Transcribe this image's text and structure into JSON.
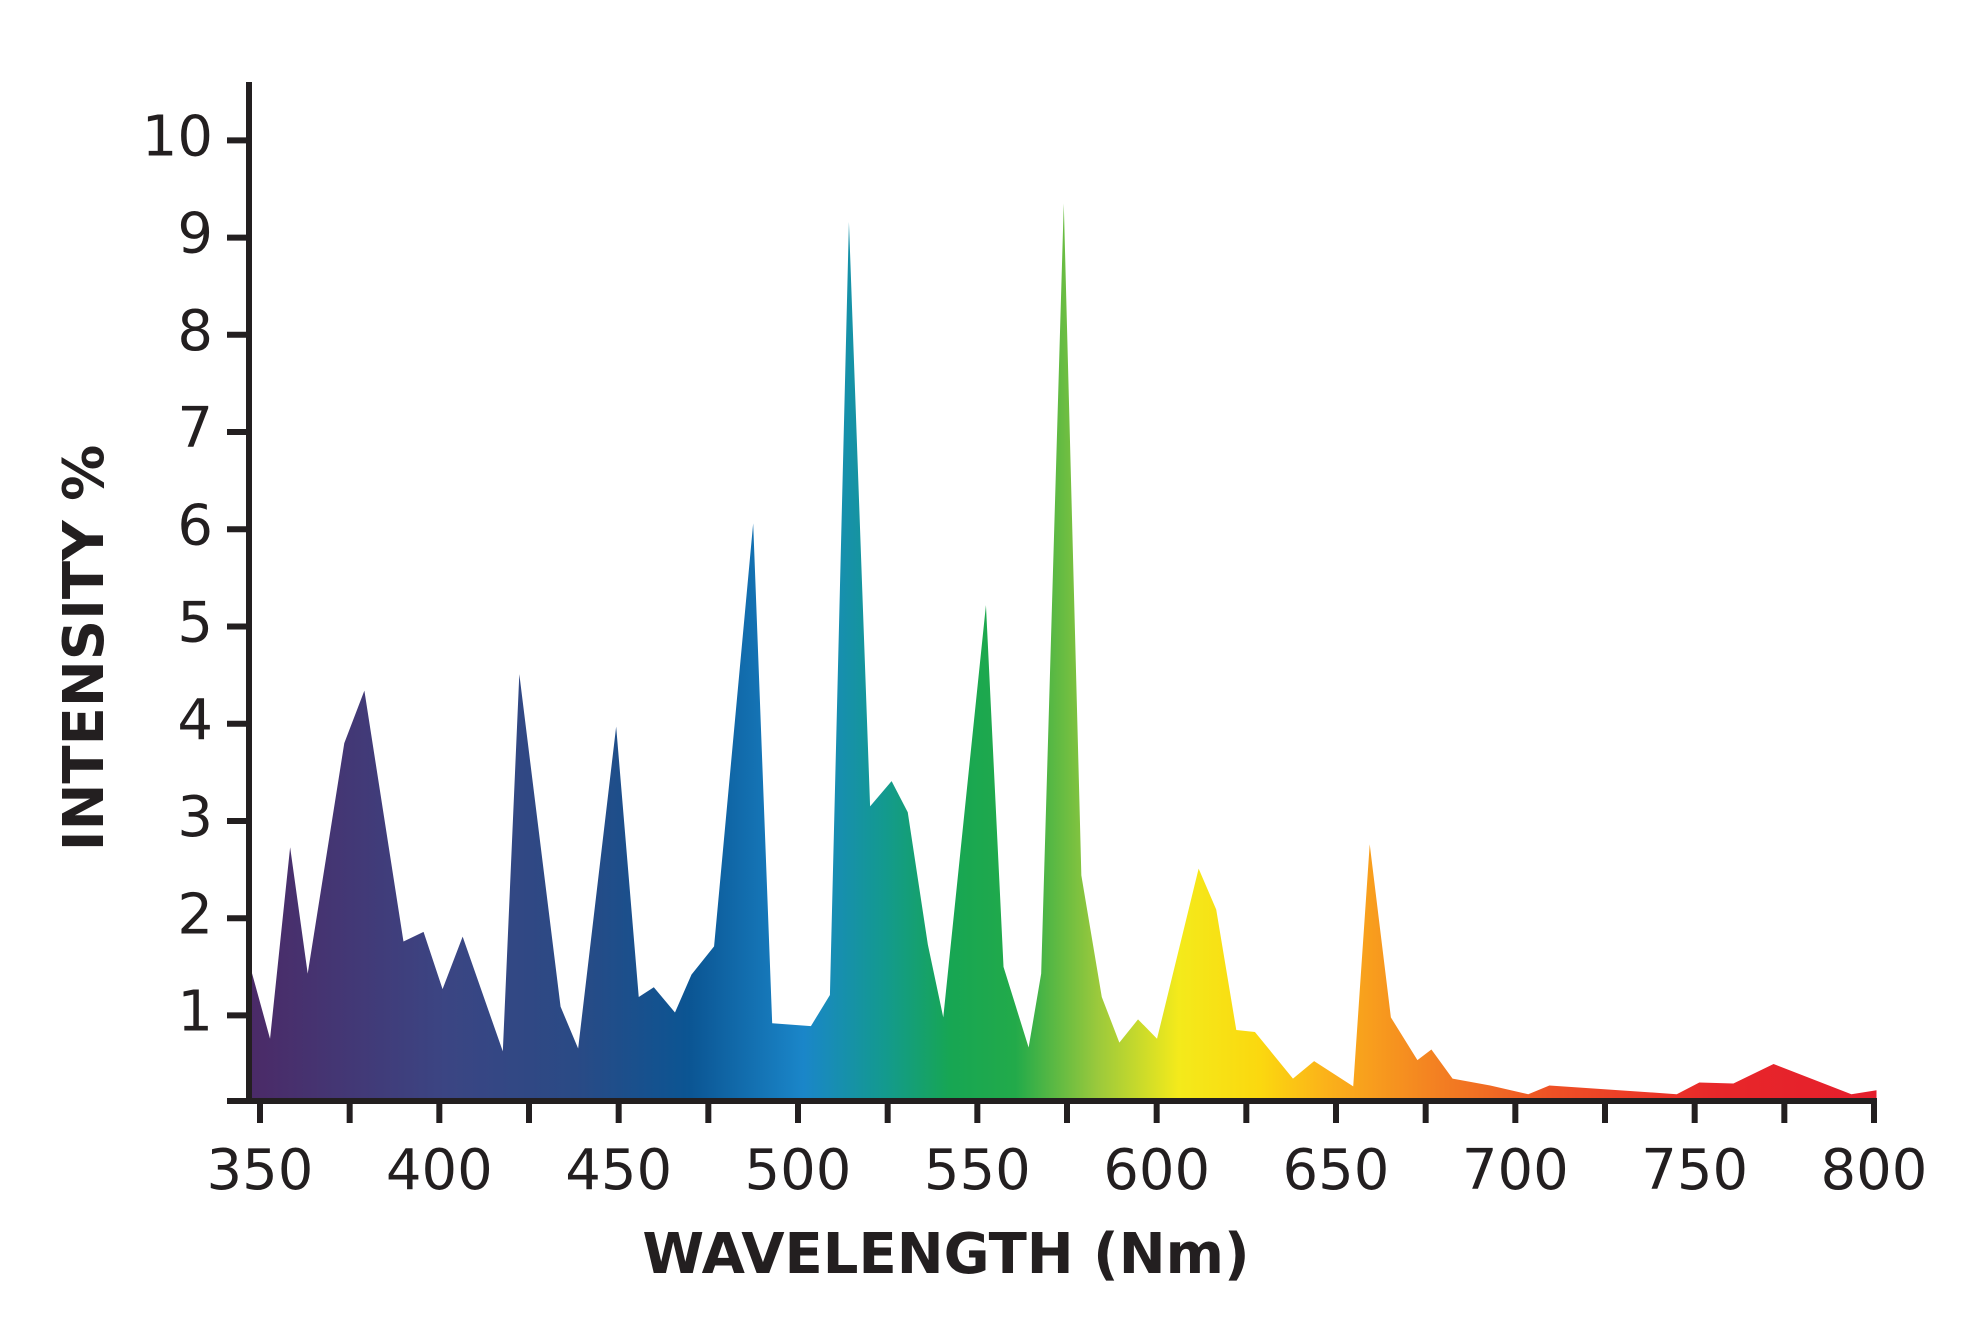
{
  "chart_data": {
    "type": "area",
    "xlabel": "WAVELENGTH (Nm)",
    "ylabel": "INTENSITY %",
    "x": [
      347.5,
      352.8,
      358.4,
      363.3,
      373.5,
      379.1,
      390,
      395.6,
      400.9,
      406.5,
      417.7,
      422.3,
      433.8,
      438.7,
      449.3,
      455.6,
      459.8,
      465.7,
      470.3,
      476.6,
      487.5,
      492.8,
      503.6,
      508.9,
      514.2,
      520.1,
      526.1,
      530.6,
      536.2,
      540.5,
      552.4,
      557.3,
      564.3,
      567.8,
      574.1,
      579.0,
      584.7,
      589.6,
      594.8,
      600.1,
      611.7,
      616.6,
      622.2,
      627.4,
      638,
      643.9,
      654.8,
      659.4,
      665.3,
      672.7,
      676.6,
      682.5,
      693.0,
      703.6,
      709.5,
      745,
      751.3,
      760.8,
      772.0,
      793.7,
      800.7
    ],
    "values": [
      1.47,
      0.76,
      2.73,
      1.43,
      3.8,
      4.34,
      1.76,
      1.86,
      1.27,
      1.81,
      0.63,
      4.51,
      1.09,
      0.66,
      3.97,
      1.19,
      1.29,
      1.03,
      1.42,
      1.71,
      6.06,
      0.92,
      0.89,
      1.21,
      9.16,
      3.15,
      3.41,
      3.09,
      1.73,
      0.98,
      5.22,
      1.5,
      0.67,
      1.43,
      9.35,
      2.44,
      1.19,
      0.72,
      0.96,
      0.76,
      2.51,
      2.09,
      0.85,
      0.83,
      0.35,
      0.53,
      0.27,
      2.76,
      0.98,
      0.54,
      0.65,
      0.35,
      0.28,
      0.19,
      0.28,
      0.19,
      0.31,
      0.3,
      0.5,
      0.19,
      0.23
    ],
    "xlim": [
      350,
      800
    ],
    "ylim": [
      0.12,
      10.6
    ],
    "xticks": [
      350,
      400,
      450,
      500,
      550,
      600,
      650,
      700,
      750,
      800
    ],
    "xminor_ticks": [
      375,
      425,
      475,
      525,
      575,
      625,
      675,
      725,
      775
    ],
    "yticks": [
      1,
      2,
      3,
      4,
      5,
      6,
      7,
      8,
      9,
      10
    ],
    "grid": false
  }
}
